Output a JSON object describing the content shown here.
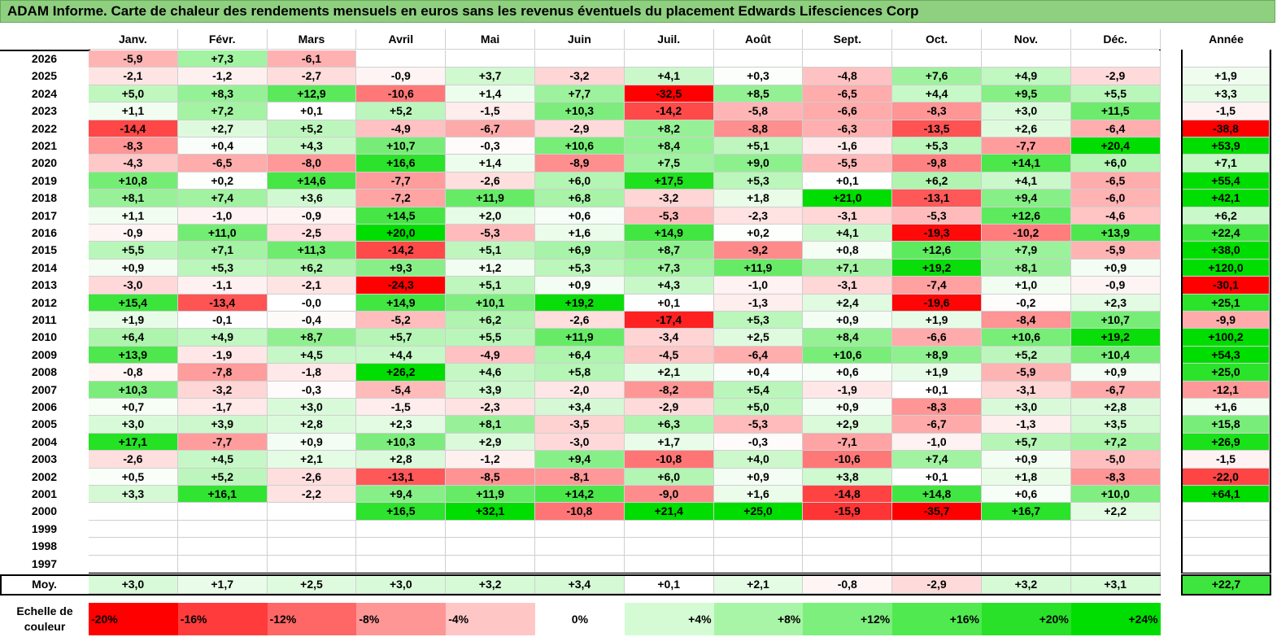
{
  "title": "ADAM Informe. Carte de chaleur des rendements mensuels en euros sans les revenus éventuels du placement Edwards Lifesciences Corp",
  "chart_data": {
    "type": "heatmap",
    "months": [
      "Janv.",
      "Févr.",
      "Mars",
      "Avril",
      "Mai",
      "Juin",
      "Juil.",
      "Août",
      "Sept.",
      "Oct.",
      "Nov.",
      "Déc."
    ],
    "annual_header": "Année",
    "rows": [
      {
        "year": "2026",
        "values": [
          "-5,9",
          "+7,3",
          "-6,1",
          "",
          "",
          "",
          "",
          "",
          "",
          "",
          "",
          ""
        ],
        "annual": ""
      },
      {
        "year": "2025",
        "values": [
          "-2,1",
          "-1,2",
          "-2,7",
          "-0,9",
          "+3,7",
          "-3,2",
          "+4,1",
          "+0,3",
          "-4,8",
          "+7,6",
          "+4,9",
          "-2,9"
        ],
        "annual": "+1,9"
      },
      {
        "year": "2024",
        "values": [
          "+5,0",
          "+8,3",
          "+12,9",
          "-10,6",
          "+1,4",
          "+7,7",
          "-32,5",
          "+8,5",
          "-6,5",
          "+4,4",
          "+9,5",
          "+5,5"
        ],
        "annual": "+3,3"
      },
      {
        "year": "2023",
        "values": [
          "+1,1",
          "+7,2",
          "+0,1",
          "+5,2",
          "-1,5",
          "+10,3",
          "-14,2",
          "-5,8",
          "-6,6",
          "-8,3",
          "+3,0",
          "+11,5"
        ],
        "annual": "-1,5"
      },
      {
        "year": "2022",
        "values": [
          "-14,4",
          "+2,7",
          "+5,2",
          "-4,9",
          "-6,7",
          "-2,9",
          "+8,2",
          "-8,8",
          "-6,3",
          "-13,5",
          "+2,6",
          "-6,4"
        ],
        "annual": "-38,8"
      },
      {
        "year": "2021",
        "values": [
          "-8,3",
          "+0,4",
          "+4,3",
          "+10,7",
          "-0,3",
          "+10,6",
          "+8,4",
          "+5,1",
          "-1,6",
          "+5,3",
          "-7,7",
          "+20,4"
        ],
        "annual": "+53,9"
      },
      {
        "year": "2020",
        "values": [
          "-4,3",
          "-6,5",
          "-8,0",
          "+16,6",
          "+1,4",
          "-8,9",
          "+7,5",
          "+9,0",
          "-5,5",
          "-9,8",
          "+14,1",
          "+6,0"
        ],
        "annual": "+7,1"
      },
      {
        "year": "2019",
        "values": [
          "+10,8",
          "+0,2",
          "+14,6",
          "-7,7",
          "-2,6",
          "+6,0",
          "+17,5",
          "+5,3",
          "+0,1",
          "+6,2",
          "+4,1",
          "-6,5"
        ],
        "annual": "+55,4"
      },
      {
        "year": "2018",
        "values": [
          "+8,1",
          "+7,4",
          "+3,6",
          "-7,2",
          "+11,9",
          "+6,8",
          "-3,2",
          "+1,8",
          "+21,0",
          "-13,1",
          "+9,4",
          "-6,0"
        ],
        "annual": "+42,1"
      },
      {
        "year": "2017",
        "values": [
          "+1,1",
          "-1,0",
          "-0,9",
          "+14,5",
          "+2,0",
          "+0,6",
          "-5,3",
          "-2,3",
          "-3,1",
          "-5,3",
          "+12,6",
          "-4,6"
        ],
        "annual": "+6,2"
      },
      {
        "year": "2016",
        "values": [
          "-0,9",
          "+11,0",
          "-2,5",
          "+20,0",
          "-5,3",
          "+1,6",
          "+14,9",
          "+0,2",
          "+4,1",
          "-19,3",
          "-10,2",
          "+13,9"
        ],
        "annual": "+22,4"
      },
      {
        "year": "2015",
        "values": [
          "+5,5",
          "+7,1",
          "+11,3",
          "-14,2",
          "+5,1",
          "+6,9",
          "+8,7",
          "-9,2",
          "+0,8",
          "+12,6",
          "+7,9",
          "-5,9"
        ],
        "annual": "+38,0"
      },
      {
        "year": "2014",
        "values": [
          "+0,9",
          "+5,3",
          "+6,2",
          "+9,3",
          "+1,2",
          "+5,3",
          "+7,3",
          "+11,9",
          "+7,1",
          "+19,2",
          "+8,1",
          "+0,9"
        ],
        "annual": "+120,0"
      },
      {
        "year": "2013",
        "values": [
          "-3,0",
          "-1,1",
          "-2,1",
          "-24,3",
          "+5,1",
          "+0,9",
          "+4,3",
          "-1,0",
          "-3,1",
          "-7,4",
          "+1,0",
          "-0,9"
        ],
        "annual": "-30,1"
      },
      {
        "year": "2012",
        "values": [
          "+15,4",
          "-13,4",
          "-0,0",
          "+14,9",
          "+10,1",
          "+19,2",
          "+0,1",
          "-1,3",
          "+2,4",
          "-19,6",
          "-0,2",
          "+2,3"
        ],
        "annual": "+25,1"
      },
      {
        "year": "2011",
        "values": [
          "+1,9",
          "-0,1",
          "-0,4",
          "-5,2",
          "+6,2",
          "-2,6",
          "-17,4",
          "+5,3",
          "+0,9",
          "+1,9",
          "-8,4",
          "+10,7"
        ],
        "annual": "-9,9"
      },
      {
        "year": "2010",
        "values": [
          "+6,4",
          "+4,9",
          "+8,7",
          "+5,7",
          "+5,5",
          "+11,9",
          "-3,4",
          "+2,5",
          "+8,4",
          "-6,6",
          "+10,6",
          "+19,2"
        ],
        "annual": "+100,2"
      },
      {
        "year": "2009",
        "values": [
          "+13,9",
          "-1,9",
          "+4,5",
          "+4,4",
          "-4,9",
          "+6,4",
          "-4,5",
          "-6,4",
          "+10,6",
          "+8,9",
          "+5,2",
          "+10,4"
        ],
        "annual": "+54,3"
      },
      {
        "year": "2008",
        "values": [
          "-0,8",
          "-7,8",
          "-1,8",
          "+26,2",
          "+4,6",
          "+5,8",
          "+2,1",
          "+0,4",
          "+0,6",
          "+1,9",
          "-5,9",
          "+0,9"
        ],
        "annual": "+25,0"
      },
      {
        "year": "2007",
        "values": [
          "+10,3",
          "-3,2",
          "-0,3",
          "-5,4",
          "+3,9",
          "-2,0",
          "-8,2",
          "+5,4",
          "-1,9",
          "+0,1",
          "-3,1",
          "-6,7"
        ],
        "annual": "-12,1"
      },
      {
        "year": "2006",
        "values": [
          "+0,7",
          "-1,7",
          "+3,0",
          "-1,5",
          "-2,3",
          "+3,4",
          "-2,9",
          "+5,0",
          "+0,9",
          "-8,3",
          "+3,0",
          "+2,8"
        ],
        "annual": "+1,6"
      },
      {
        "year": "2005",
        "values": [
          "+3,0",
          "+3,9",
          "+2,8",
          "+2,3",
          "+8,1",
          "-3,5",
          "+6,3",
          "-5,3",
          "+2,9",
          "-6,7",
          "-1,3",
          "+3,5"
        ],
        "annual": "+15,8"
      },
      {
        "year": "2004",
        "values": [
          "+17,1",
          "-7,7",
          "+0,9",
          "+10,3",
          "+2,9",
          "-3,0",
          "+1,7",
          "-0,3",
          "-7,1",
          "-1,0",
          "+5,7",
          "+7,2"
        ],
        "annual": "+26,9"
      },
      {
        "year": "2003",
        "values": [
          "-2,6",
          "+4,5",
          "+2,1",
          "+2,8",
          "-1,2",
          "+9,4",
          "-10,8",
          "+4,0",
          "-10,6",
          "+7,4",
          "+0,9",
          "-5,0"
        ],
        "annual": "-1,5"
      },
      {
        "year": "2002",
        "values": [
          "+0,5",
          "+5,2",
          "-2,6",
          "-13,1",
          "-8,5",
          "-8,1",
          "+6,0",
          "+0,9",
          "+3,8",
          "+0,1",
          "+1,8",
          "-8,3"
        ],
        "annual": "-22,0"
      },
      {
        "year": "2001",
        "values": [
          "+3,3",
          "+16,1",
          "-2,2",
          "+9,4",
          "+11,9",
          "+14,2",
          "-9,0",
          "+1,6",
          "-14,8",
          "+14,8",
          "+0,6",
          "+10,0"
        ],
        "annual": "+64,1"
      },
      {
        "year": "2000",
        "values": [
          "",
          "",
          "",
          "+16,5",
          "+32,1",
          "-10,8",
          "+21,4",
          "+25,0",
          "-15,9",
          "-35,7",
          "+16,7",
          "+2,2"
        ],
        "annual": ""
      },
      {
        "year": "1999",
        "values": [
          "",
          "",
          "",
          "",
          "",
          "",
          "",
          "",
          "",
          "",
          "",
          ""
        ],
        "annual": ""
      },
      {
        "year": "1998",
        "values": [
          "",
          "",
          "",
          "",
          "",
          "",
          "",
          "",
          "",
          "",
          "",
          ""
        ],
        "annual": ""
      },
      {
        "year": "1997",
        "values": [
          "",
          "",
          "",
          "",
          "",
          "",
          "",
          "",
          "",
          "",
          "",
          ""
        ],
        "annual": ""
      }
    ],
    "average": {
      "label": "Moy.",
      "values": [
        "+3,0",
        "+1,7",
        "+2,5",
        "+3,0",
        "+3,2",
        "+3,4",
        "+0,1",
        "+2,1",
        "-0,8",
        "-2,9",
        "+3,2",
        "+3,1"
      ],
      "annual": "+22,7"
    },
    "scale": {
      "label": "Echelle de couleur",
      "steps": [
        "-20%",
        "-16%",
        "-12%",
        "-8%",
        "-4%",
        "0%",
        "+4%",
        "+8%",
        "+12%",
        "+16%",
        "+20%",
        "+24%"
      ],
      "colors": [
        "#ff0000",
        "#ff3b3b",
        "#ff6666",
        "#ff9696",
        "#ffc6c6",
        "#ffffff",
        "#d4fbd4",
        "#a8f5a8",
        "#7cef7c",
        "#50e950",
        "#28e128",
        "#00dd00"
      ]
    },
    "colors": {
      "negative_max": "#ff0000",
      "neutral": "#ffffff",
      "positive_max": "#00dd00",
      "title_bg": "#8fcf80"
    }
  }
}
